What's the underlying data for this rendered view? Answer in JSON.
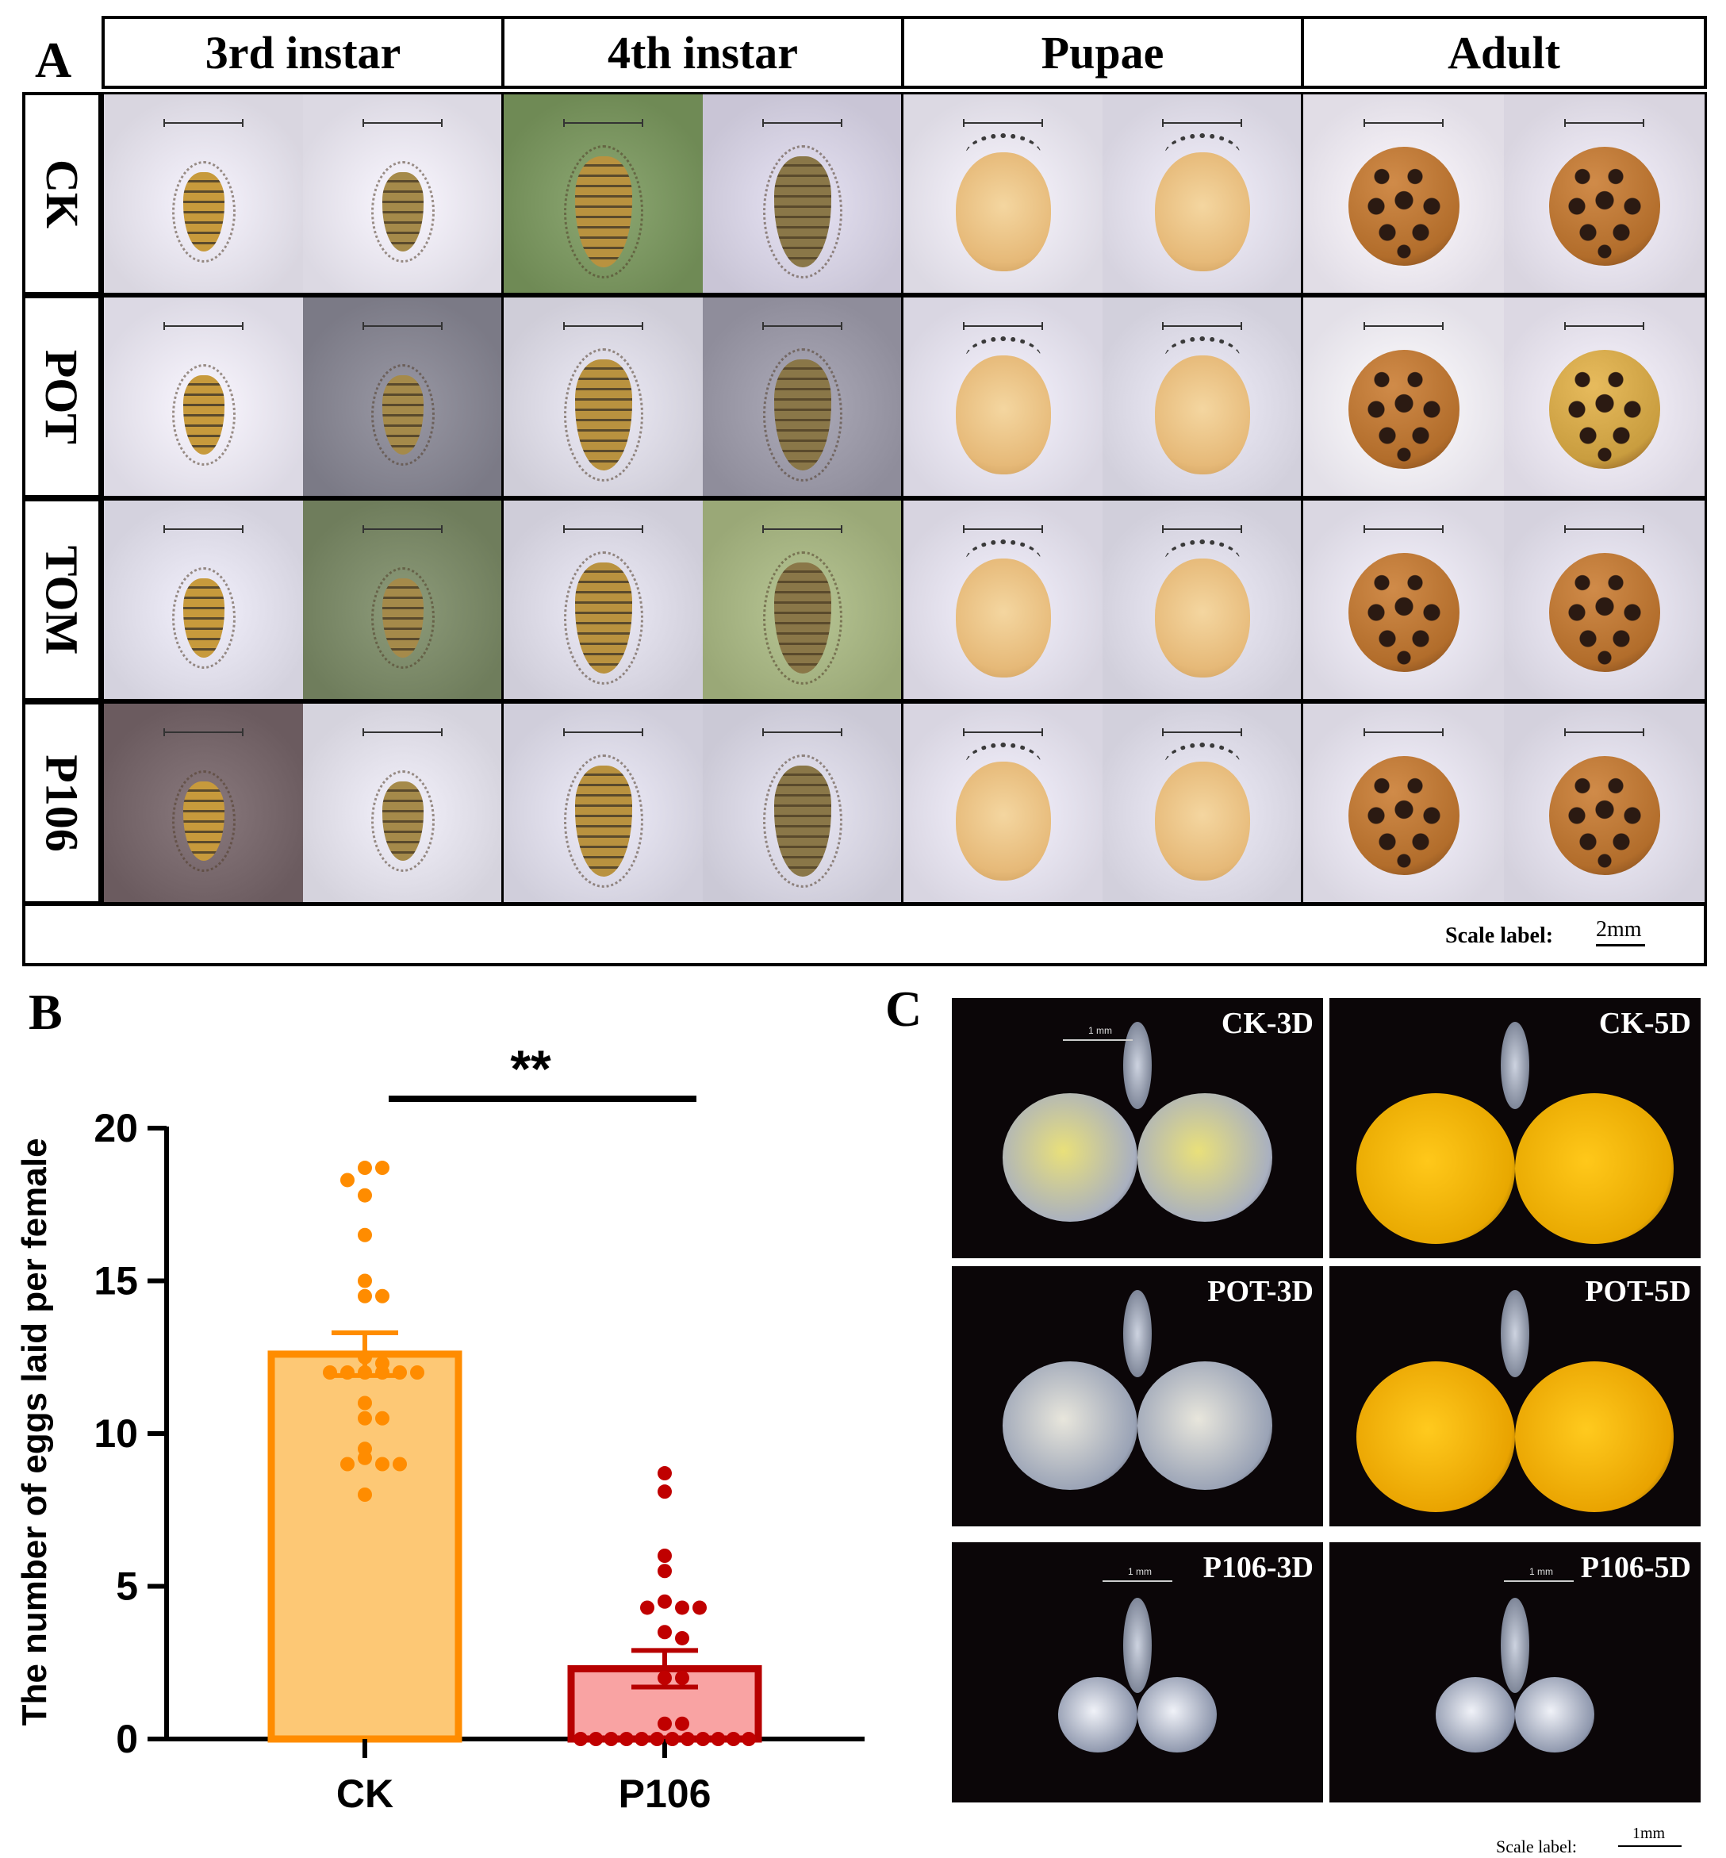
{
  "panel_labels": {
    "a": "A",
    "b": "B",
    "c": "C"
  },
  "panelA": {
    "columns": [
      "3rd instar",
      "4th instar",
      "Pupae",
      "Adult"
    ],
    "rows": [
      "CK",
      "POT",
      "TOM",
      "P106"
    ],
    "scale_label": "Scale label:",
    "scale_value": "2mm"
  },
  "chart_data": {
    "type": "bar",
    "title": "",
    "xlabel": "",
    "ylabel": "The number of eggs laid per female",
    "categories": [
      "CK",
      "P106"
    ],
    "values": [
      12.6,
      2.3
    ],
    "sem": [
      0.7,
      0.6
    ],
    "ylim": [
      0,
      20
    ],
    "yticks": [
      0,
      5,
      10,
      15,
      20
    ],
    "significance": "**",
    "colors": {
      "CK": {
        "fill": "#FDC875",
        "stroke": "#FF8C00",
        "point": "#FF8C00"
      },
      "P106": {
        "fill": "#F9A3A3",
        "stroke": "#B70000",
        "point": "#C00000"
      }
    },
    "points": {
      "CK": [
        18.7,
        18.7,
        18.3,
        17.8,
        16.5,
        15.0,
        14.5,
        14.5,
        12.5,
        12.3,
        12.0,
        12.0,
        12.0,
        12.0,
        12.0,
        12.0,
        11.0,
        10.5,
        10.5,
        9.5,
        9.2,
        9.0,
        9.0,
        9.0,
        8.0
      ],
      "P106": [
        8.7,
        8.1,
        6.0,
        5.5,
        4.5,
        4.3,
        4.3,
        4.3,
        3.5,
        3.3,
        2.0,
        2.0,
        0.5,
        0.5,
        0,
        0,
        0,
        0,
        0,
        0,
        0,
        0,
        0,
        0,
        0,
        0
      ]
    }
  },
  "panelC": {
    "images": [
      {
        "label": "CK-3D",
        "scale": "1 mm"
      },
      {
        "label": "CK-5D",
        "scale": ""
      },
      {
        "label": "POT-3D",
        "scale": ""
      },
      {
        "label": "POT-5D",
        "scale": ""
      },
      {
        "label": "P106-3D",
        "scale": "1 mm"
      },
      {
        "label": "P106-5D",
        "scale": "1 mm"
      }
    ],
    "scale_label": "Scale label:",
    "scale_value": "1mm"
  },
  "colors": {
    "grid_border": "#000000",
    "ovary_bg": "#0b0608"
  }
}
